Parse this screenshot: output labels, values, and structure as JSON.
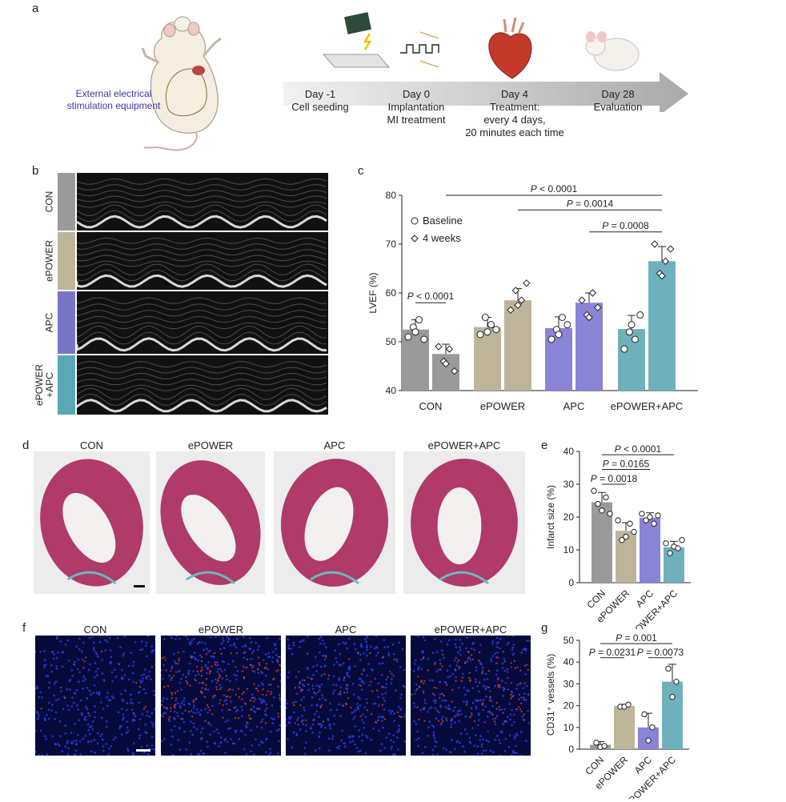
{
  "panel_labels": {
    "a": "a",
    "b": "b",
    "c": "c",
    "d": "d",
    "e": "e",
    "f": "f",
    "g": "g"
  },
  "panel_a": {
    "equipment_label_1": "External electrical",
    "equipment_label_2": "stimulation equipment",
    "timeline": [
      {
        "day": "Day -1",
        "lines": [
          "Cell seeding"
        ]
      },
      {
        "day": "Day 0",
        "lines": [
          "Implantation",
          "MI treatment"
        ]
      },
      {
        "day": "Day 4",
        "lines": [
          "Treatment:",
          "every 4 days,",
          "20 minutes each time"
        ]
      },
      {
        "day": "Day 28",
        "lines": [
          "Evaluation"
        ]
      }
    ]
  },
  "panel_b": {
    "rows": [
      {
        "label": "CON",
        "color": "#9a9a9a"
      },
      {
        "label": "ePOWER",
        "color": "#bdb49a"
      },
      {
        "label": "APC",
        "color": "#7a74c8"
      },
      {
        "label": "ePOWER\n+APC",
        "color": "#5aa7b6"
      }
    ]
  },
  "panel_d": {
    "titles": [
      "CON",
      "ePOWER",
      "APC",
      "ePOWER+APC"
    ]
  },
  "panel_f": {
    "titles": [
      "CON",
      "ePOWER",
      "APC",
      "ePOWER+APC"
    ]
  },
  "colors": {
    "CON": "#9a9a9a",
    "ePOWER": "#bdb49a",
    "APC": "#8984d6",
    "ePOWERAPC": "#6fb0bd"
  },
  "chart_data": [
    {
      "id": "c",
      "type": "bar",
      "ylabel": "LVEF (%)",
      "ylim": [
        40,
        80
      ],
      "yticks": [
        40,
        50,
        60,
        70,
        80
      ],
      "categories": [
        "CON",
        "ePOWER",
        "APC",
        "ePOWER+APC"
      ],
      "legend": [
        {
          "marker": "circle",
          "name": "Baseline"
        },
        {
          "marker": "diamond",
          "name": "4 weeks"
        }
      ],
      "series": [
        {
          "name": "Baseline",
          "values": [
            52.5,
            53.0,
            52.8,
            52.6
          ],
          "errors": [
            2.0,
            2.0,
            2.3,
            2.8
          ],
          "points": [
            [
              51,
              53,
              54.5,
              50.5,
              52
            ],
            [
              51.5,
              55,
              53.5,
              52.5,
              52
            ],
            [
              50.5,
              52.5,
              55,
              53.5,
              51.5
            ],
            [
              48.5,
              52,
              50.5,
              55.5,
              53.5
            ]
          ]
        },
        {
          "name": "4 weeks",
          "values": [
            47.5,
            58.5,
            58.0,
            66.5
          ],
          "errors": [
            2.0,
            2.4,
            2.0,
            3.0
          ],
          "points": [
            [
              49,
              46,
              48.5,
              44,
              45.5
            ],
            [
              56.5,
              60.5,
              58.5,
              62,
              57.5
            ],
            [
              58.5,
              55.5,
              60,
              57,
              55
            ],
            [
              70,
              64,
              66.5,
              69,
              63.5
            ]
          ]
        }
      ],
      "comparisons": [
        {
          "text": "P < 0.0001",
          "from": [
            0,
            1
          ],
          "to": [
            3,
            1
          ],
          "level": 80
        },
        {
          "text": "P = 0.0014",
          "from": [
            1,
            1
          ],
          "to": [
            3,
            1
          ],
          "level": 77
        },
        {
          "text": "P = 0.0008",
          "from": [
            2,
            1
          ],
          "to": [
            3,
            1
          ],
          "level": 72.5
        },
        {
          "text": "P < 0.0001",
          "from": [
            0,
            0
          ],
          "to": [
            0,
            1
          ],
          "level": 58
        }
      ]
    },
    {
      "id": "e",
      "type": "bar",
      "ylabel": "Infarct size (%)",
      "ylim": [
        0,
        40
      ],
      "yticks": [
        0,
        10,
        20,
        30,
        40
      ],
      "categories": [
        "CON",
        "ePOWER",
        "APC",
        "ePOWER+APC"
      ],
      "values": [
        24.5,
        15.8,
        19.8,
        10.8
      ],
      "errors": [
        3.0,
        2.5,
        1.5,
        1.8
      ],
      "points": [
        [
          28,
          24,
          22,
          26,
          21
        ],
        [
          19,
          13,
          14,
          18,
          15.5
        ],
        [
          21,
          19,
          20,
          18,
          20.5
        ],
        [
          12,
          9,
          11,
          10.5,
          13
        ]
      ],
      "comparisons": [
        {
          "text": "P < 0.0001",
          "from": 0,
          "to": 3,
          "level": 39
        },
        {
          "text": "P = 0.0165",
          "from": 0,
          "to": 2,
          "level": 34.5
        },
        {
          "text": "P = 0.0018",
          "from": 0,
          "to": 1,
          "level": 30
        }
      ]
    },
    {
      "id": "g",
      "type": "bar",
      "ylabel": "CD31⁺ vessels (%)",
      "ylim": [
        0,
        50
      ],
      "yticks": [
        0,
        10,
        20,
        30,
        40,
        50
      ],
      "categories": [
        "CON",
        "ePOWER",
        "APC",
        "ePOWER+APC"
      ],
      "values": [
        2.0,
        19.8,
        10.0,
        31.0
      ],
      "errors": [
        1.5,
        0.8,
        6.5,
        8.0
      ],
      "points": [
        [
          3,
          1,
          1.5
        ],
        [
          19.5,
          19.5,
          20.5
        ],
        [
          16,
          4,
          10
        ],
        [
          37,
          24,
          31
        ]
      ],
      "comparisons": [
        {
          "text": "P = 0.001",
          "from": 0,
          "to": 3,
          "level": 48.5
        },
        {
          "text": "P = 0.0231",
          "from": 0,
          "to": 1,
          "level": 42
        },
        {
          "text": "P = 0.0073",
          "from": 2,
          "to": 3,
          "level": 42
        }
      ]
    }
  ]
}
